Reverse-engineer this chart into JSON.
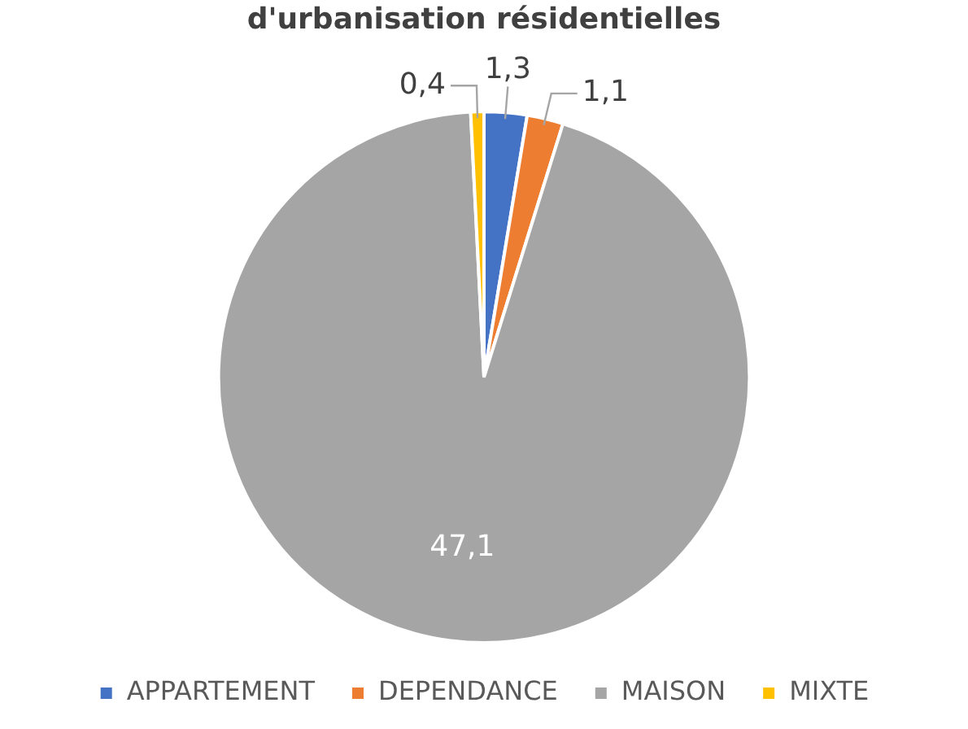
{
  "chart_data": {
    "type": "pie",
    "title": "d'urbanisation résidentielles",
    "categories": [
      "APPARTEMENT",
      "DEPENDANCE",
      "MAISON",
      "MIXTE"
    ],
    "values": [
      1.3,
      1.1,
      47.1,
      0.4
    ],
    "colors": [
      "#4472c4",
      "#ed7d31",
      "#a5a5a5",
      "#ffc000"
    ],
    "value_labels": [
      "1,3",
      "1,1",
      "47,1",
      "0,4"
    ],
    "legend": "bottom"
  }
}
